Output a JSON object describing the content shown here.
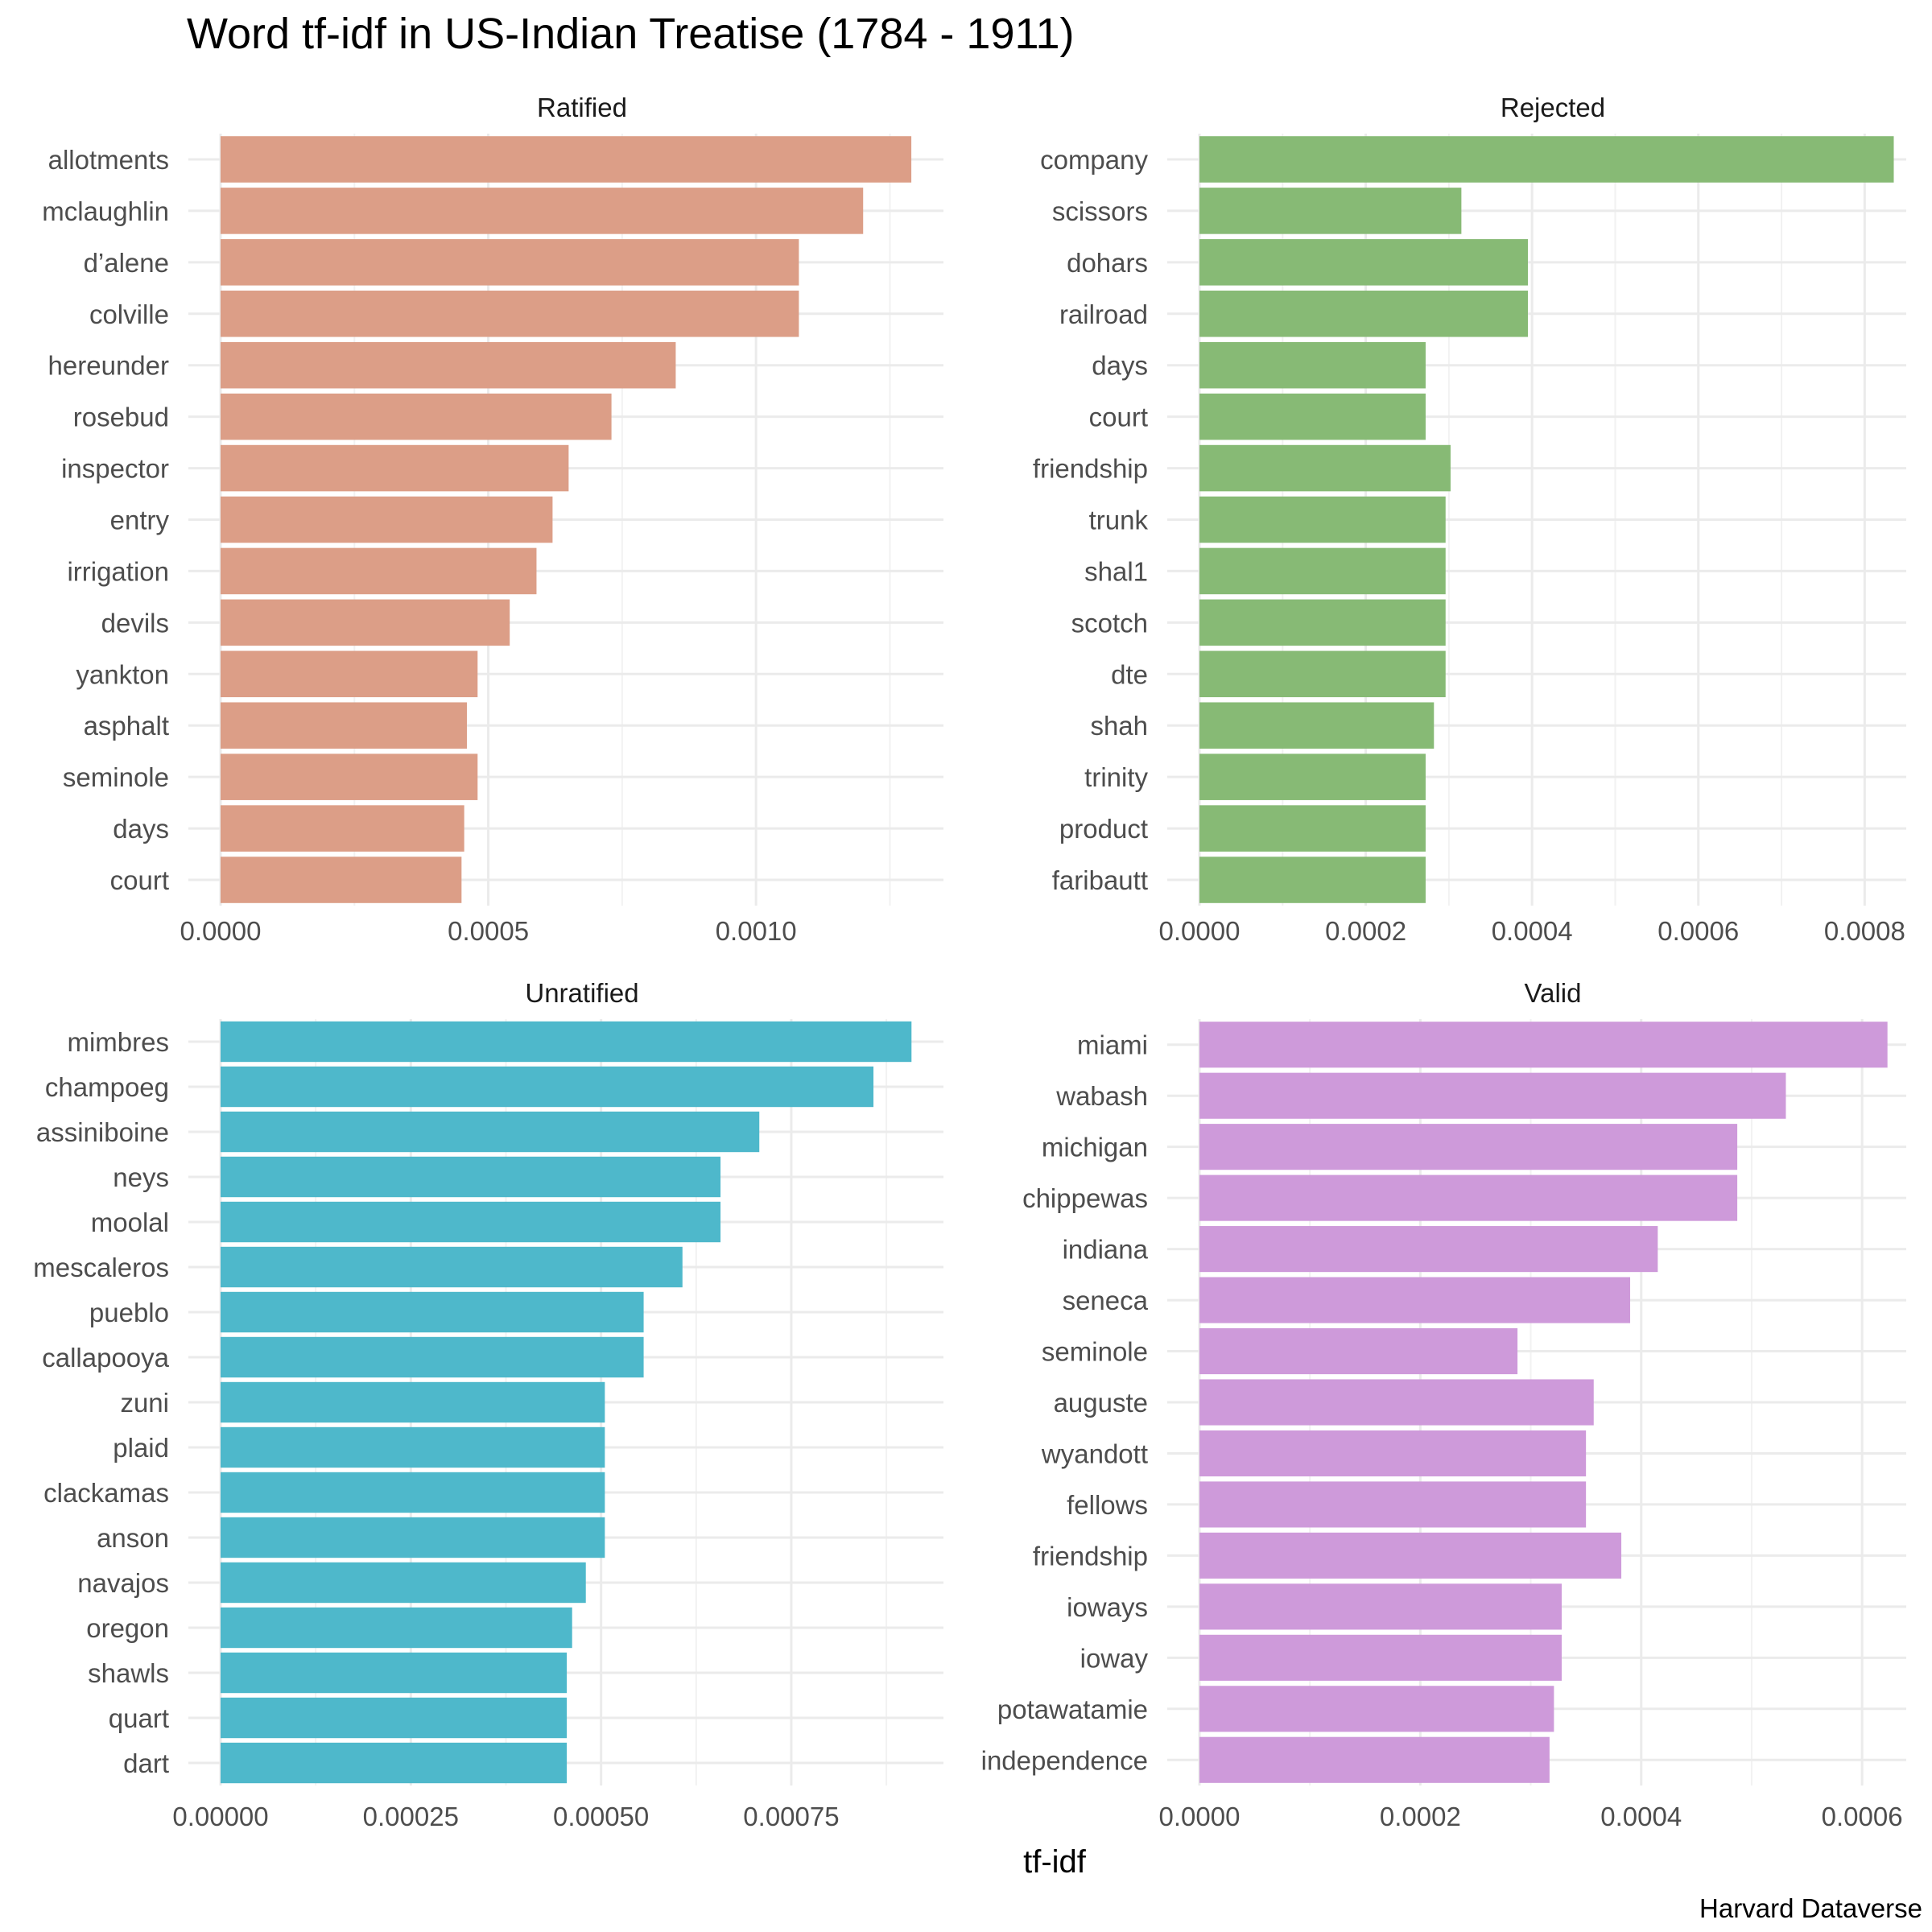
{
  "title": "Word tf-idf in US-Indian Treatise (1784 - 1911)",
  "xlabel": "tf-idf",
  "caption": "Harvard Dataverse",
  "chart_data": {
    "type": "bar",
    "orientation": "horizontal",
    "title": "Word tf-idf in US-Indian Treatise (1784 - 1911)",
    "xlabel": "tf-idf",
    "caption": "Harvard Dataverse",
    "grid": true,
    "legend": "none",
    "facets": [
      {
        "name": "Ratified",
        "color": "#DC9E87",
        "xlim": [
          0,
          0.00135
        ],
        "ticks": [
          0,
          0.0005,
          0.001
        ],
        "tick_labels": [
          "0.0000",
          "0.0005",
          "0.0010"
        ],
        "categories": [
          "allotments",
          "mclaughlin",
          "d’alene",
          "colville",
          "hereunder",
          "rosebud",
          "inspector",
          "entry",
          "irrigation",
          "devils",
          "yankton",
          "asphalt",
          "seminole",
          "days",
          "court"
        ],
        "values": [
          0.00129,
          0.0012,
          0.00108,
          0.00108,
          0.00085,
          0.00073,
          0.00065,
          0.00062,
          0.00059,
          0.00054,
          0.00048,
          0.00046,
          0.00048,
          0.000455,
          0.00045
        ]
      },
      {
        "name": "Rejected",
        "color": "#87BA75",
        "xlim": [
          0,
          0.00085
        ],
        "ticks": [
          0,
          0.0002,
          0.0004,
          0.0006,
          0.0008
        ],
        "tick_labels": [
          "0.0000",
          "0.0002",
          "0.0004",
          "0.0006",
          "0.0008"
        ],
        "categories": [
          "company",
          "scissors",
          "dohars",
          "railroad",
          "days",
          "court",
          "friendship",
          "trunk",
          "shal1",
          "scotch",
          "dte",
          "shah",
          "trinity",
          "product",
          "faribautt"
        ],
        "values": [
          0.000835,
          0.000315,
          0.000395,
          0.000395,
          0.000272,
          0.000272,
          0.000302,
          0.000296,
          0.000296,
          0.000296,
          0.000296,
          0.000282,
          0.000272,
          0.000272,
          0.000272
        ]
      },
      {
        "name": "Unratified",
        "color": "#4EB8CB",
        "xlim": [
          0,
          0.00095
        ],
        "ticks": [
          0,
          0.00025,
          0.0005,
          0.00075
        ],
        "tick_labels": [
          "0.00000",
          "0.00025",
          "0.00050",
          "0.00075"
        ],
        "categories": [
          "mimbres",
          "champoeg",
          "assiniboine",
          "neys",
          "moolal",
          "mescaleros",
          "pueblo",
          "callapooya",
          "zuni",
          "plaid",
          "clackamas",
          "anson",
          "navajos",
          "oregon",
          "shawls",
          "quart",
          "dart"
        ],
        "values": [
          0.000908,
          0.000858,
          0.000708,
          0.000657,
          0.000657,
          0.000607,
          0.000556,
          0.000556,
          0.000505,
          0.000505,
          0.000505,
          0.000505,
          0.00048,
          0.000462,
          0.000455,
          0.000455,
          0.000455
        ]
      },
      {
        "name": "Valid",
        "color": "#CE9ADA",
        "xlim": [
          0,
          0.00064
        ],
        "ticks": [
          0,
          0.0002,
          0.0004,
          0.0006
        ],
        "tick_labels": [
          "0.0000",
          "0.0002",
          "0.0004",
          "0.0006"
        ],
        "categories": [
          "miami",
          "wabash",
          "michigan",
          "chippewas",
          "indiana",
          "seneca",
          "seminole",
          "auguste",
          "wyandott",
          "fellows",
          "friendship",
          "ioways",
          "ioway",
          "potawatamie",
          "independence"
        ],
        "values": [
          0.000623,
          0.000531,
          0.000487,
          0.000487,
          0.000415,
          0.00039,
          0.000288,
          0.000357,
          0.00035,
          0.00035,
          0.000382,
          0.000328,
          0.000328,
          0.000321,
          0.000317
        ]
      }
    ]
  }
}
